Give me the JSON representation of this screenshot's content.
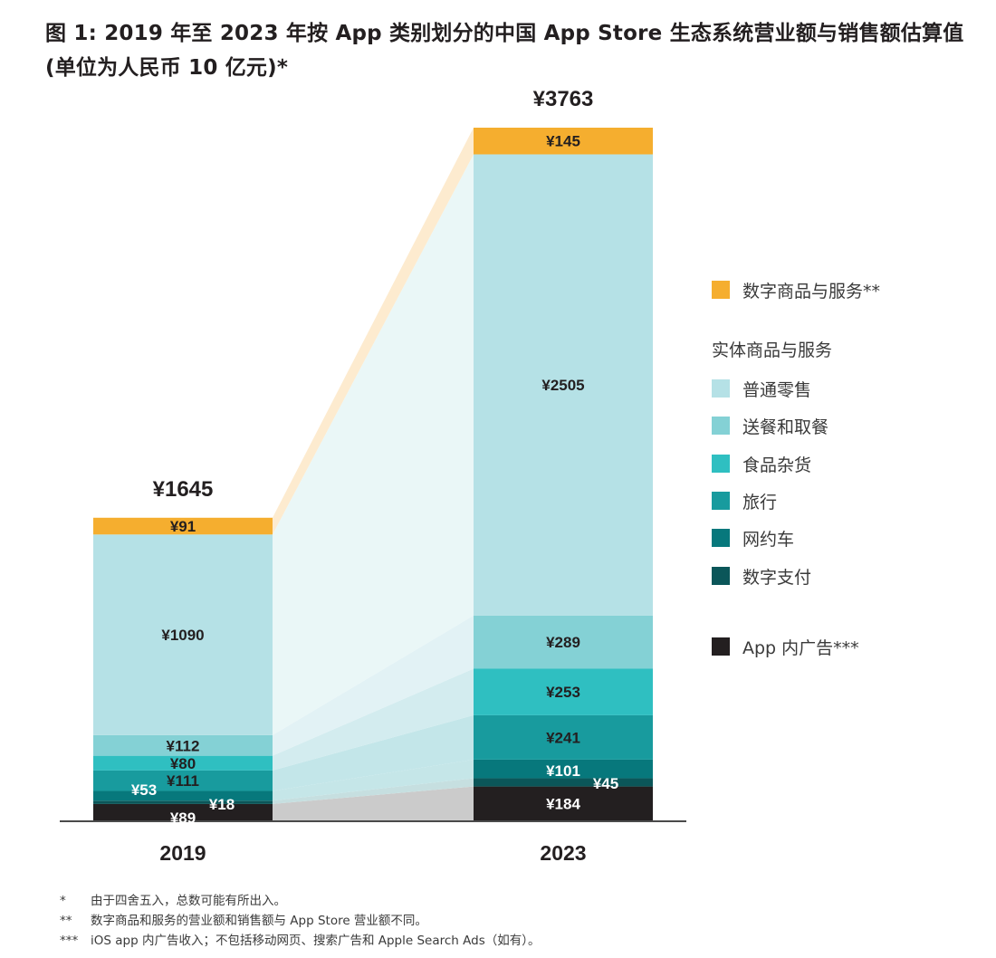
{
  "title": "图 1: 2019 年至 2023 年按 App 类别划分的中国 App Store 生态系统营业额与销售额估算值 (单位为人民币 10 亿元)*",
  "legend": {
    "digital": {
      "label": "数字商品与服务**",
      "color": "#f5ae2f"
    },
    "group_heading": "实体商品与服务",
    "physical": [
      {
        "label": "普通零售",
        "color": "#b5e1e6"
      },
      {
        "label": "送餐和取餐",
        "color": "#84d1d5"
      },
      {
        "label": "食品杂货",
        "color": "#2fbfc1"
      },
      {
        "label": "旅行",
        "color": "#189b9e"
      },
      {
        "label": "网约车",
        "color": "#07787c"
      },
      {
        "label": "数字支付",
        "color": "#0b5659"
      }
    ],
    "ads": {
      "label": "App 内广告***",
      "color": "#231f20"
    }
  },
  "footnotes": [
    {
      "mark": "*",
      "text": "由于四舍五入，总数可能有所出入。"
    },
    {
      "mark": "**",
      "text": "数字商品和服务的营业额和销售额与 App Store 营业额不同。"
    },
    {
      "mark": "***",
      "text": "iOS app 内广告收入；不包括移动网页、搜索广告和 Apple Search Ads（如有）。"
    }
  ],
  "chart_data": {
    "type": "bar",
    "stacked": true,
    "title": "图 1: 2019 年至 2023 年按 App 类别划分的中国 App Store 生态系统营业额与销售额估算值 (单位为人民币 10 亿元)*",
    "xlabel": "",
    "ylabel": "",
    "currency_prefix": "¥",
    "categories": [
      "2019",
      "2023"
    ],
    "totals": [
      1645,
      3763
    ],
    "total_labels": [
      "¥1645",
      "¥3763"
    ],
    "ylim": [
      0,
      3763
    ],
    "grid": false,
    "legend_position": "right",
    "series": [
      {
        "name": "App 内广告***",
        "color": "#231f20",
        "label_color": "#ffffff",
        "values": [
          89,
          184
        ],
        "labels": [
          "¥89",
          "¥184"
        ]
      },
      {
        "name": "数字支付",
        "color": "#0b5659",
        "label_color": "#ffffff",
        "values": [
          18,
          45
        ],
        "labels": [
          "¥18",
          "¥45"
        ]
      },
      {
        "name": "网约车",
        "color": "#07787c",
        "label_color": "#ffffff",
        "values": [
          53,
          101
        ],
        "labels": [
          "¥53",
          "¥101"
        ]
      },
      {
        "name": "旅行",
        "color": "#189b9e",
        "label_color": "#231f20",
        "values": [
          111,
          241
        ],
        "labels": [
          "¥111",
          "¥241"
        ]
      },
      {
        "name": "食品杂货",
        "color": "#2fbfc1",
        "label_color": "#231f20",
        "values": [
          80,
          253
        ],
        "labels": [
          "¥80",
          "¥253"
        ]
      },
      {
        "name": "送餐和取餐",
        "color": "#84d1d5",
        "label_color": "#231f20",
        "values": [
          112,
          289
        ],
        "labels": [
          "¥112",
          "¥289"
        ]
      },
      {
        "name": "普通零售",
        "color": "#b5e1e6",
        "label_color": "#231f20",
        "values": [
          1090,
          2505
        ],
        "labels": [
          "¥1090",
          "¥2505"
        ]
      },
      {
        "name": "数字商品与服务**",
        "color": "#f5ae2f",
        "label_color": "#231f20",
        "values": [
          91,
          145
        ],
        "labels": [
          "¥91",
          "¥145"
        ]
      }
    ],
    "connector_colors": [
      "#cbcbcb",
      "#c6dfe0",
      "#c5e6e8",
      "#c3e6e9",
      "#d3ecef",
      "#e2f2f5",
      "#eaf7f7",
      "#fdebcf"
    ]
  }
}
